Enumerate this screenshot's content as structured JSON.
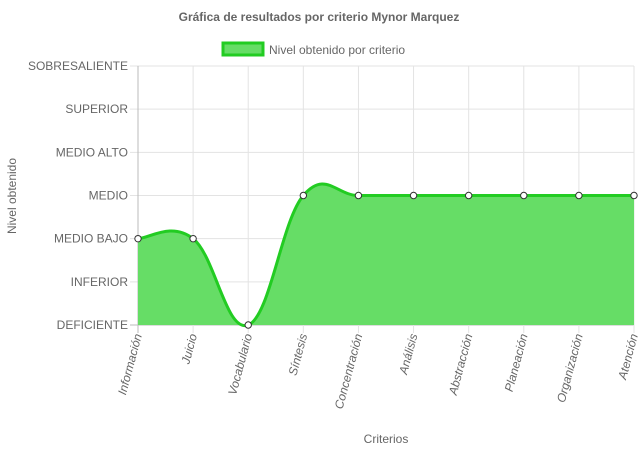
{
  "chart_data": {
    "type": "area",
    "title": "Gráfica de resultados por criterio Mynor Marquez",
    "xlabel": "Criterios",
    "ylabel": "Nivel obtenido",
    "y_levels": [
      "DEFICIENTE",
      "INFERIOR",
      "MEDIO BAJO",
      "MEDIO",
      "MEDIO ALTO",
      "SUPERIOR",
      "SOBRESALIENTE"
    ],
    "categories": [
      "Información",
      "Juicio",
      "Vocabulario",
      "Síntesis",
      "Concentración",
      "Análisis",
      "Abstracción",
      "Planeación",
      "Organización",
      "Atención"
    ],
    "series": [
      {
        "name": "Nivel obtenido por criterio",
        "values": [
          2,
          2,
          0,
          3,
          3,
          3,
          3,
          3,
          3,
          3
        ]
      }
    ],
    "ylim": [
      0,
      6
    ],
    "grid": true,
    "legend_position": "top",
    "colors": {
      "fill": "#66dd66",
      "line": "#22cc22",
      "grid": "#e3e3e3",
      "axis": "#bbbbbb"
    }
  }
}
